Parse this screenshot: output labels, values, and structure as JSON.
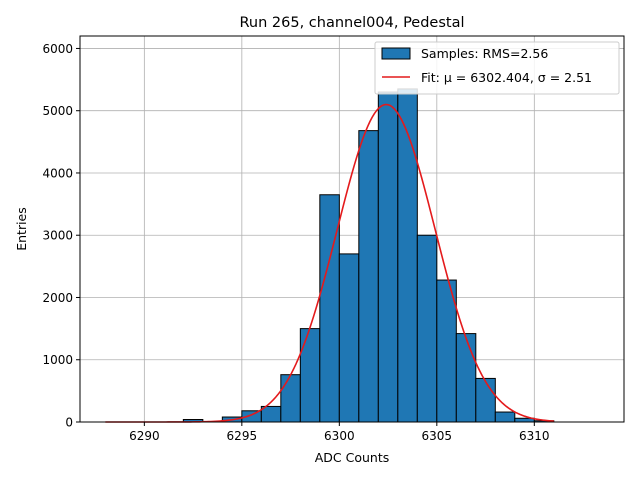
{
  "chart_data": {
    "type": "bar",
    "title": "Run 265, channel004, Pedestal",
    "xlabel": "ADC Counts",
    "ylabel": "Entries",
    "xlim": [
      6286.7,
      6314.6
    ],
    "ylim": [
      0,
      6200
    ],
    "grid": true,
    "legend_position": "top-right",
    "x_ticks": [
      6290,
      6295,
      6300,
      6305,
      6310
    ],
    "y_ticks": [
      0,
      1000,
      2000,
      3000,
      4000,
      5000,
      6000
    ],
    "x_tick_labels": [
      "6290",
      "6295",
      "6300",
      "6305",
      "6310"
    ],
    "y_tick_labels": [
      "0",
      "1000",
      "2000",
      "3000",
      "4000",
      "5000",
      "6000"
    ],
    "histogram": {
      "name": "Samples: RMS=2.56",
      "bin_edges": [
        6292,
        6293,
        6294,
        6295,
        6296,
        6297,
        6298,
        6299,
        6300,
        6301,
        6302,
        6303,
        6304,
        6305,
        6306,
        6307,
        6308,
        6309,
        6310,
        6311
      ],
      "counts": [
        40,
        0,
        80,
        180,
        250,
        760,
        1500,
        3650,
        2700,
        4680,
        5300,
        5350,
        3000,
        2280,
        1420,
        700,
        160,
        60,
        20
      ],
      "color": "#1f77b4",
      "edgecolor": "#000000"
    },
    "fit": {
      "name": "Fit: μ = 6302.404, σ = 2.51",
      "mu": 6302.404,
      "sigma": 2.51,
      "amplitude": 5100,
      "x_range": [
        6288,
        6311
      ],
      "color": "#e41a1c"
    }
  }
}
